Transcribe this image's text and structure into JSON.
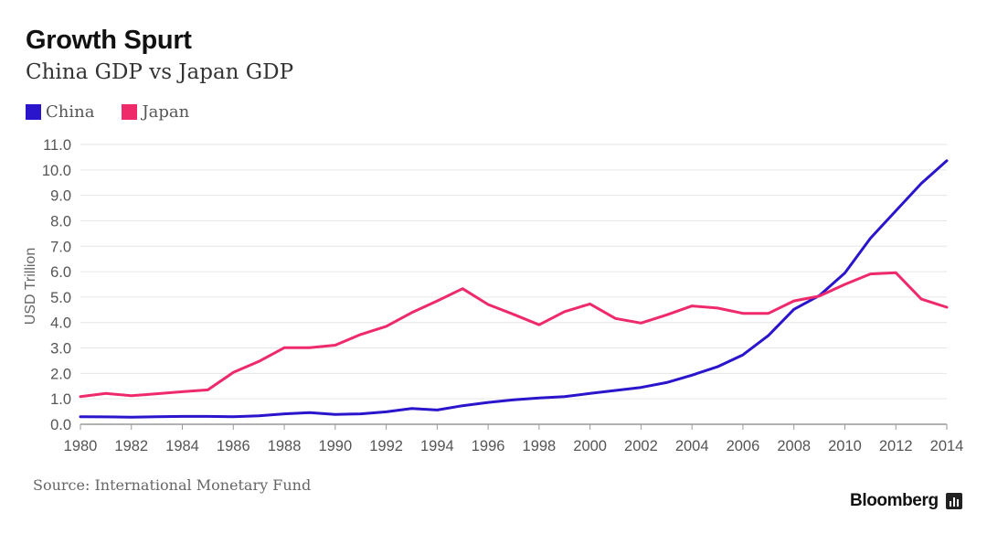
{
  "header": {
    "title": "Growth Spurt",
    "subtitle": "China GDP vs Japan GDP"
  },
  "footer": {
    "source": "Source: International Monetary Fund",
    "brand": "Bloomberg"
  },
  "colors": {
    "china": "#2a14cc",
    "japan": "#ee2a6b",
    "grid": "#e6e6e6",
    "axis": "#999999"
  },
  "chart_data": {
    "type": "line",
    "title": "Growth Spurt",
    "subtitle": "China GDP vs Japan GDP",
    "xlabel": "",
    "ylabel": "USD Trillion",
    "xlim": [
      1980,
      2014
    ],
    "ylim": [
      0,
      11
    ],
    "x_ticks": [
      "1980",
      "1982",
      "1984",
      "1986",
      "1988",
      "1990",
      "1992",
      "1994",
      "1996",
      "1998",
      "2000",
      "2002",
      "2004",
      "2006",
      "2008",
      "2010",
      "2012",
      "2014"
    ],
    "y_ticks": [
      "0.0",
      "1.0",
      "2.0",
      "3.0",
      "4.0",
      "5.0",
      "6.0",
      "7.0",
      "8.0",
      "9.0",
      "10.0",
      "11.0"
    ],
    "legend": [
      "China",
      "Japan"
    ],
    "x": [
      1980,
      1981,
      1982,
      1983,
      1984,
      1985,
      1986,
      1987,
      1988,
      1989,
      1990,
      1991,
      1992,
      1993,
      1994,
      1995,
      1996,
      1997,
      1998,
      1999,
      2000,
      2001,
      2002,
      2003,
      2004,
      2005,
      2006,
      2007,
      2008,
      2009,
      2010,
      2011,
      2012,
      2013,
      2014
    ],
    "series": [
      {
        "name": "China",
        "values": [
          0.3,
          0.29,
          0.28,
          0.3,
          0.31,
          0.31,
          0.3,
          0.33,
          0.41,
          0.46,
          0.39,
          0.41,
          0.49,
          0.62,
          0.56,
          0.73,
          0.86,
          0.96,
          1.03,
          1.09,
          1.21,
          1.33,
          1.45,
          1.64,
          1.93,
          2.26,
          2.73,
          3.49,
          4.52,
          5.06,
          5.95,
          7.31,
          8.39,
          9.47,
          10.36
        ]
      },
      {
        "name": "Japan",
        "values": [
          1.09,
          1.21,
          1.12,
          1.2,
          1.28,
          1.35,
          2.04,
          2.47,
          3.01,
          3.01,
          3.11,
          3.53,
          3.85,
          4.39,
          4.85,
          5.33,
          4.71,
          4.32,
          3.91,
          4.43,
          4.73,
          4.16,
          3.98,
          4.3,
          4.65,
          4.57,
          4.36,
          4.36,
          4.85,
          5.04,
          5.5,
          5.91,
          5.96,
          4.92,
          4.6
        ]
      }
    ]
  }
}
